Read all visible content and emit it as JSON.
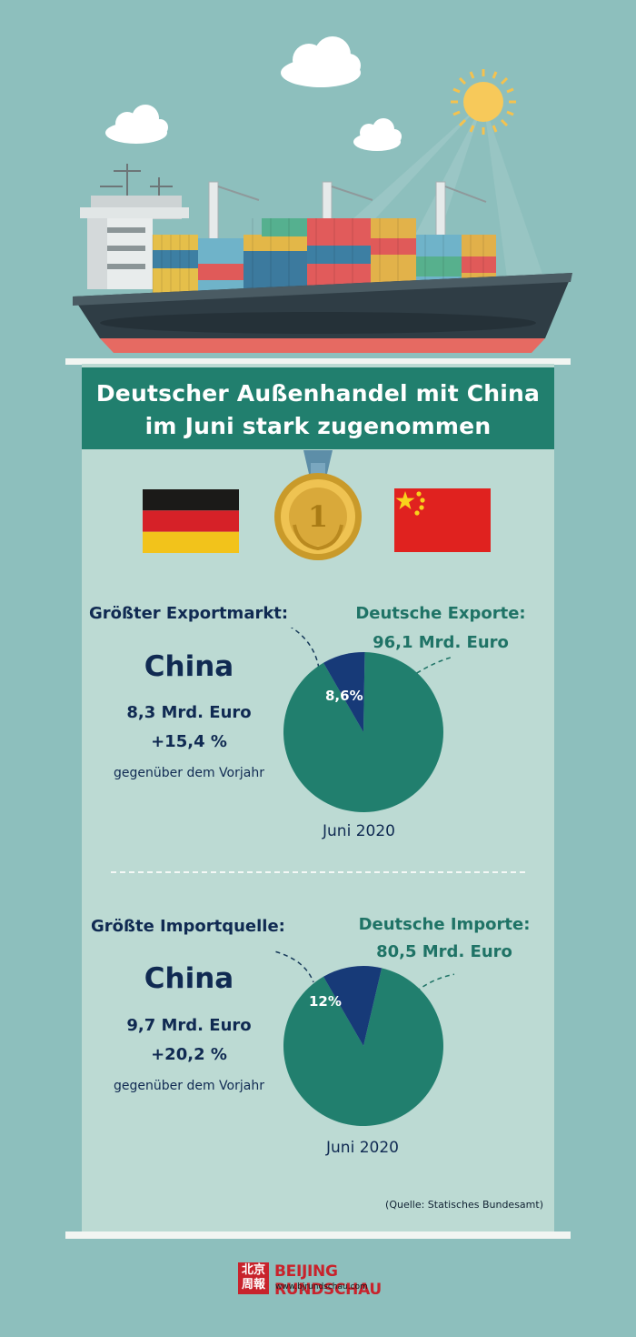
{
  "title": {
    "line1": "Deutscher Außenhandel mit China",
    "line2": "im Juni stark zugenommen"
  },
  "medal_number": "1",
  "export_section": {
    "label": "Größter Exportmarkt:",
    "country": "China",
    "amount": "8,3 Mrd. Euro",
    "change": "+15,4 %",
    "comparison": "gegenüber dem Vorjahr",
    "total_label": "Deutsche Exporte:",
    "total_value": "96,1 Mrd. Euro",
    "date": "Juni 2020"
  },
  "import_section": {
    "label": "Größte Importquelle:",
    "country": "China",
    "amount": "9,7 Mrd. Euro",
    "change": "+20,2 %",
    "comparison": "gegenüber dem Vorjahr",
    "total_label": "Deutsche Importe:",
    "total_value": "80,5 Mrd. Euro",
    "date": "Juni 2020"
  },
  "source": "(Quelle: Statisches Bundesamt)",
  "footer": {
    "logo_chars": "北京周報",
    "brand": "BEIJING RUNDSCHAU",
    "url": "www.bjrundschau.com"
  },
  "colors": {
    "background": "#8dbfbd",
    "panel": "#bcdad3",
    "banner": "#217f6e",
    "pie_main": "#217f6e",
    "pie_highlight": "#173a78",
    "text_dark": "#102a52",
    "text_teal": "#1f7366",
    "brand_red": "#c8232c"
  },
  "chart_data": [
    {
      "type": "pie",
      "values": [
        8.6,
        91.4
      ],
      "labels": [
        "8,6%",
        ""
      ],
      "xlabel": "Juni 2020"
    },
    {
      "type": "pie",
      "values": [
        12,
        88
      ],
      "labels": [
        "12%",
        ""
      ],
      "xlabel": "Juni 2020"
    }
  ]
}
